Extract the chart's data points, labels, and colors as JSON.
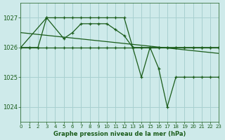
{
  "background_color": "#ceeaea",
  "grid_color": "#a8d0d0",
  "line_color": "#1a5c1a",
  "title": "Graphe pression niveau de la mer (hPa)",
  "xlim": [
    0,
    23
  ],
  "ylim": [
    1023.5,
    1027.5
  ],
  "yticks": [
    1024,
    1025,
    1026,
    1027
  ],
  "xticks": [
    0,
    1,
    2,
    3,
    4,
    5,
    6,
    7,
    8,
    9,
    10,
    11,
    12,
    13,
    14,
    15,
    16,
    17,
    18,
    19,
    20,
    21,
    22,
    23
  ],
  "series": [
    {
      "x": [
        0,
        1,
        2,
        3,
        4,
        5,
        6,
        7,
        8,
        9,
        10,
        11,
        12,
        13,
        14,
        15,
        16,
        17,
        18,
        19,
        20,
        21,
        22,
        23
      ],
      "y": [
        1026.0,
        1026.0,
        1026.0,
        1026.0,
        1026.0,
        1026.0,
        1026.0,
        1026.0,
        1026.0,
        1026.0,
        1026.0,
        1026.0,
        1026.0,
        1026.0,
        1026.0,
        1026.0,
        1026.0,
        1026.0,
        1026.0,
        1026.0,
        1026.0,
        1026.0,
        1026.0,
        1026.0
      ],
      "markers": true
    },
    {
      "x": [
        0,
        1,
        2,
        3,
        4,
        5,
        6,
        7,
        8,
        9,
        10,
        11,
        12,
        13,
        14,
        15,
        16,
        17,
        18,
        19,
        20,
        21,
        22,
        23
      ],
      "y": [
        1026.0,
        1026.0,
        1026.0,
        1027.0,
        1027.0,
        1027.0,
        1027.0,
        1027.0,
        1027.0,
        1027.0,
        1027.0,
        1027.0,
        1027.0,
        1026.0,
        1026.0,
        1026.0,
        1026.0,
        1026.0,
        1026.0,
        1026.0,
        1026.0,
        1026.0,
        1026.0,
        1026.0
      ],
      "markers": true
    },
    {
      "x": [
        0,
        23
      ],
      "y": [
        1026.5,
        1025.8
      ],
      "markers": false
    },
    {
      "x": [
        0,
        3,
        5,
        6,
        7,
        8,
        9,
        10,
        11,
        12,
        13,
        14,
        15,
        16,
        17,
        18,
        19,
        20,
        21,
        22,
        23
      ],
      "y": [
        1026.0,
        1027.0,
        1026.3,
        1026.5,
        1026.8,
        1026.8,
        1026.8,
        1026.8,
        1026.6,
        1026.4,
        1026.0,
        1025.0,
        1026.0,
        1025.3,
        1024.0,
        1025.0,
        1025.0,
        1025.0,
        1025.0,
        1025.0,
        1025.0
      ],
      "markers": true
    }
  ]
}
